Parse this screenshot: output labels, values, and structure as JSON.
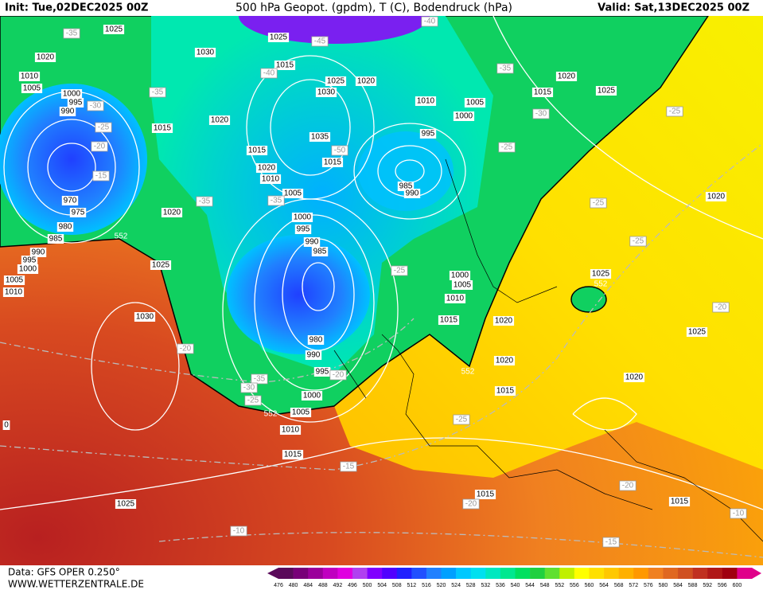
{
  "header": {
    "init": "Init: Tue,02DEC2025 00Z",
    "title": "500 hPa Geopot. (gpdm), T (C), Bodendruck (hPa)",
    "valid": "Valid: Sat,13DEC2025 00Z"
  },
  "footer": {
    "data": "Data: GFS OPER 0.250°",
    "site": "WWW.WETTERZENTRALE.DE"
  },
  "colorbar": {
    "labels": [
      476,
      480,
      484,
      488,
      492,
      496,
      500,
      504,
      508,
      512,
      516,
      520,
      524,
      528,
      532,
      536,
      540,
      544,
      548,
      552,
      556,
      560,
      564,
      568,
      572,
      576,
      580,
      584,
      588,
      592,
      596,
      600
    ],
    "colors": [
      "#5a0a5a",
      "#780078",
      "#9b009b",
      "#c000c0",
      "#e000e0",
      "#b040f0",
      "#8000ff",
      "#5000ff",
      "#2020ff",
      "#2050ff",
      "#2080ff",
      "#00a0ff",
      "#00c8ff",
      "#00e0f0",
      "#00e8c0",
      "#00e890",
      "#00e060",
      "#20d040",
      "#60e030",
      "#c0f000",
      "#ffff00",
      "#ffe000",
      "#ffc800",
      "#ffb000",
      "#ff9800",
      "#f08020",
      "#e06820",
      "#d05020",
      "#c03020",
      "#b01818",
      "#a00010",
      "#e0008a"
    ]
  },
  "map_labels": [
    "1025",
    "-35",
    "1020",
    "1010",
    "1005",
    "1000",
    "995",
    "990",
    "-30",
    "-25",
    "-20",
    "-15",
    "970",
    "975",
    "980",
    "985",
    "552",
    "990",
    "995",
    "1000",
    "1005",
    "1010",
    "-35",
    "1015",
    "1020",
    "-35",
    "1030",
    "1025",
    "-45",
    "1015",
    "-40",
    "1020",
    "1025",
    "1030",
    "1020",
    "1035",
    "1015",
    "-50",
    "1015",
    "1020",
    "1010",
    "1005",
    "-35",
    "995",
    "985",
    "990",
    "-40",
    "-35",
    "1020",
    "1015",
    "1025",
    "1010",
    "1005",
    "1000",
    "-30",
    "-25",
    "-25",
    "1020",
    "-25",
    "-25",
    "1025",
    "552",
    "-20",
    "1025",
    "1020",
    "1000",
    "995",
    "990",
    "985",
    "1025",
    "1030",
    "-20",
    "980",
    "990",
    "995",
    "-20",
    "1000",
    "1005",
    "-35",
    "-30",
    "-25",
    "552",
    "1010",
    "1015",
    "-15",
    "-25",
    "1000",
    "1005",
    "1010",
    "1015",
    "1020",
    "1020",
    "552",
    "1015",
    "-25",
    "1015",
    "-20",
    "-20",
    "1015",
    "-10",
    "-15",
    "-10",
    "1025",
    "0"
  ]
}
